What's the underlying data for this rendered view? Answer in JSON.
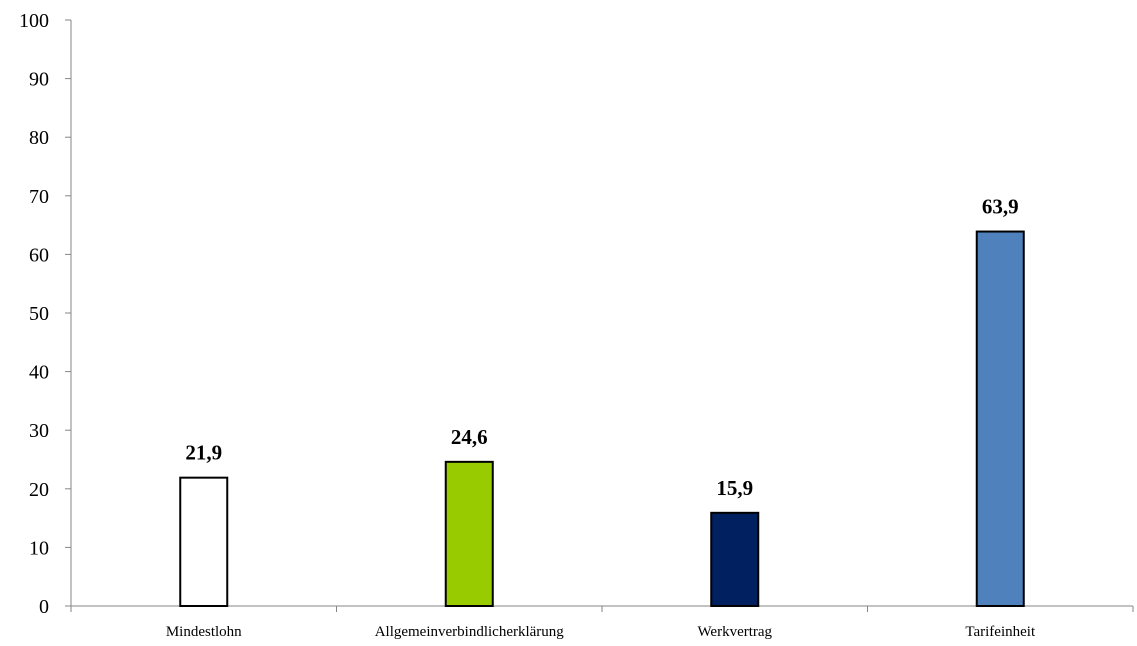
{
  "chart_data": {
    "type": "bar",
    "categories": [
      "Mindestlohn",
      "Allgemeinverbindlicherklärung",
      "Werkvertrag",
      "Tarifeinheit"
    ],
    "values": [
      21.9,
      24.6,
      15.9,
      63.9
    ],
    "value_labels": [
      "21,9",
      "24,6",
      "15,9",
      "63,9"
    ],
    "bar_colors": [
      "#ffffff",
      "#99cc00",
      "#002060",
      "#4f81bd"
    ],
    "bar_border_color": "#000000",
    "ylim": [
      0,
      100
    ],
    "yticks": [
      0,
      10,
      20,
      30,
      40,
      50,
      60,
      70,
      80,
      90,
      100
    ],
    "ytick_labels": [
      "0",
      "10",
      "20",
      "30",
      "40",
      "50",
      "60",
      "70",
      "80",
      "90",
      "100"
    ],
    "title": "",
    "xlabel": "",
    "ylabel": "",
    "grid": false,
    "legend": "none"
  }
}
